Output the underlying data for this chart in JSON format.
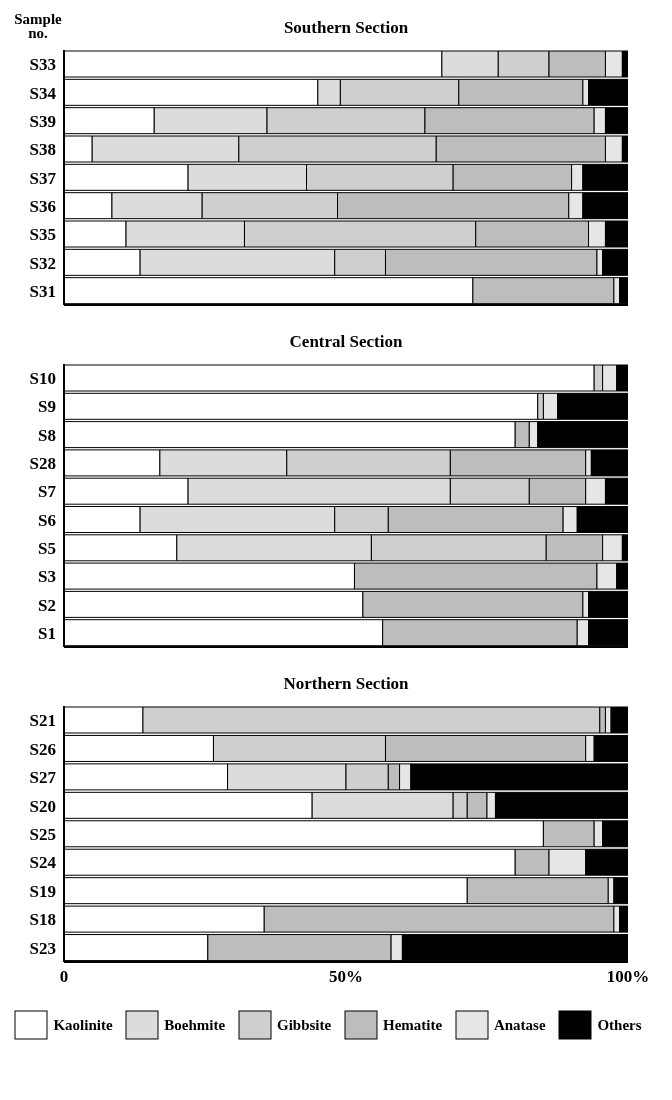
{
  "chart_data": [
    {
      "type": "bar",
      "orientation": "horizontal",
      "stacked": true,
      "title": "Southern Section",
      "ylabel": "Sample no.",
      "categories": [
        "S33",
        "S34",
        "S39",
        "S38",
        "S37",
        "S36",
        "S35",
        "S32",
        "S31"
      ],
      "xlim": [
        0,
        100
      ],
      "tick_labels": "y",
      "series": [
        {
          "color": "#ffffff",
          "values": [
            67,
            45,
            16,
            5,
            22,
            8.5,
            11,
            13.5,
            72.5
          ]
        },
        {
          "color": "#dcdcdc",
          "values": [
            10,
            4,
            20,
            26,
            21,
            16,
            21,
            34.5,
            0
          ]
        },
        {
          "color": "#cfcfcf",
          "values": [
            9,
            21,
            28,
            35,
            26,
            24,
            41,
            9,
            0
          ]
        },
        {
          "color": "#bdbdbd",
          "values": [
            10,
            22,
            30,
            30,
            21,
            41,
            20,
            37.5,
            25
          ]
        },
        {
          "color": "#e6e6e6",
          "values": [
            3,
            1,
            2,
            3,
            2,
            2.5,
            3,
            1,
            1
          ]
        },
        {
          "color": "#000000",
          "values": [
            1,
            7,
            4,
            1,
            8,
            8,
            4,
            4.5,
            1.5
          ]
        }
      ]
    },
    {
      "type": "bar",
      "orientation": "horizontal",
      "stacked": true,
      "title": "Central Section",
      "categories": [
        "S10",
        "S9",
        "S8",
        "S28",
        "S7",
        "S6",
        "S5",
        "S3",
        "S2",
        "S1"
      ],
      "xlim": [
        0,
        100
      ],
      "tick_labels": "y",
      "series": [
        {
          "color": "#ffffff",
          "values": [
            94,
            84,
            80,
            17,
            22,
            13.5,
            20,
            51.5,
            53,
            56.5
          ]
        },
        {
          "color": "#dcdcdc",
          "values": [
            0,
            0,
            0,
            22.5,
            46.5,
            34.5,
            34.5,
            0,
            0,
            0
          ]
        },
        {
          "color": "#cfcfcf",
          "values": [
            1.5,
            1,
            0,
            29,
            14,
            9.5,
            31,
            0,
            0,
            0
          ]
        },
        {
          "color": "#bdbdbd",
          "values": [
            0,
            0,
            2.5,
            24,
            10,
            31,
            10,
            43,
            39,
            34.5
          ]
        },
        {
          "color": "#e6e6e6",
          "values": [
            2.5,
            2.5,
            1.5,
            1,
            3.5,
            2.5,
            3.5,
            3.5,
            1,
            2
          ]
        },
        {
          "color": "#000000",
          "values": [
            2,
            12.5,
            16,
            6.5,
            4,
            9,
            1,
            2,
            7,
            7
          ]
        }
      ]
    },
    {
      "type": "bar",
      "orientation": "horizontal",
      "stacked": true,
      "title": "Northern Section",
      "categories": [
        "S21",
        "S26",
        "S27",
        "S20",
        "S25",
        "S24",
        "S19",
        "S18",
        "S23"
      ],
      "xlim": [
        0,
        100
      ],
      "xticks": [
        0,
        {
          "value": 50,
          "label": "50%"
        },
        {
          "value": 100,
          "label": "100%"
        }
      ],
      "legend": "bottom",
      "series": [
        {
          "name": "Kaolinite",
          "color": "#ffffff",
          "values": [
            14,
            26.5,
            29,
            44,
            85,
            80,
            71.5,
            35.5,
            25.5
          ]
        },
        {
          "name": "Boehmite",
          "color": "#dcdcdc",
          "values": [
            0,
            0,
            21,
            25,
            0,
            0,
            0,
            0,
            0
          ]
        },
        {
          "name": "Gibbsite",
          "color": "#cfcfcf",
          "values": [
            81,
            30.5,
            7.5,
            2.5,
            0,
            0,
            0,
            0,
            0
          ]
        },
        {
          "name": "Hematite",
          "color": "#bdbdbd",
          "values": [
            1,
            35.5,
            2,
            3.5,
            9,
            6,
            25,
            62,
            32.5
          ]
        },
        {
          "name": "Anatase",
          "color": "#e6e6e6",
          "values": [
            1,
            1.5,
            2,
            1.5,
            1.5,
            6.5,
            1,
            1,
            2
          ]
        },
        {
          "name": "Others",
          "color": "#000000",
          "values": [
            3,
            6,
            38.5,
            23.5,
            4.5,
            7.5,
            2.5,
            1.5,
            40
          ]
        }
      ]
    }
  ]
}
